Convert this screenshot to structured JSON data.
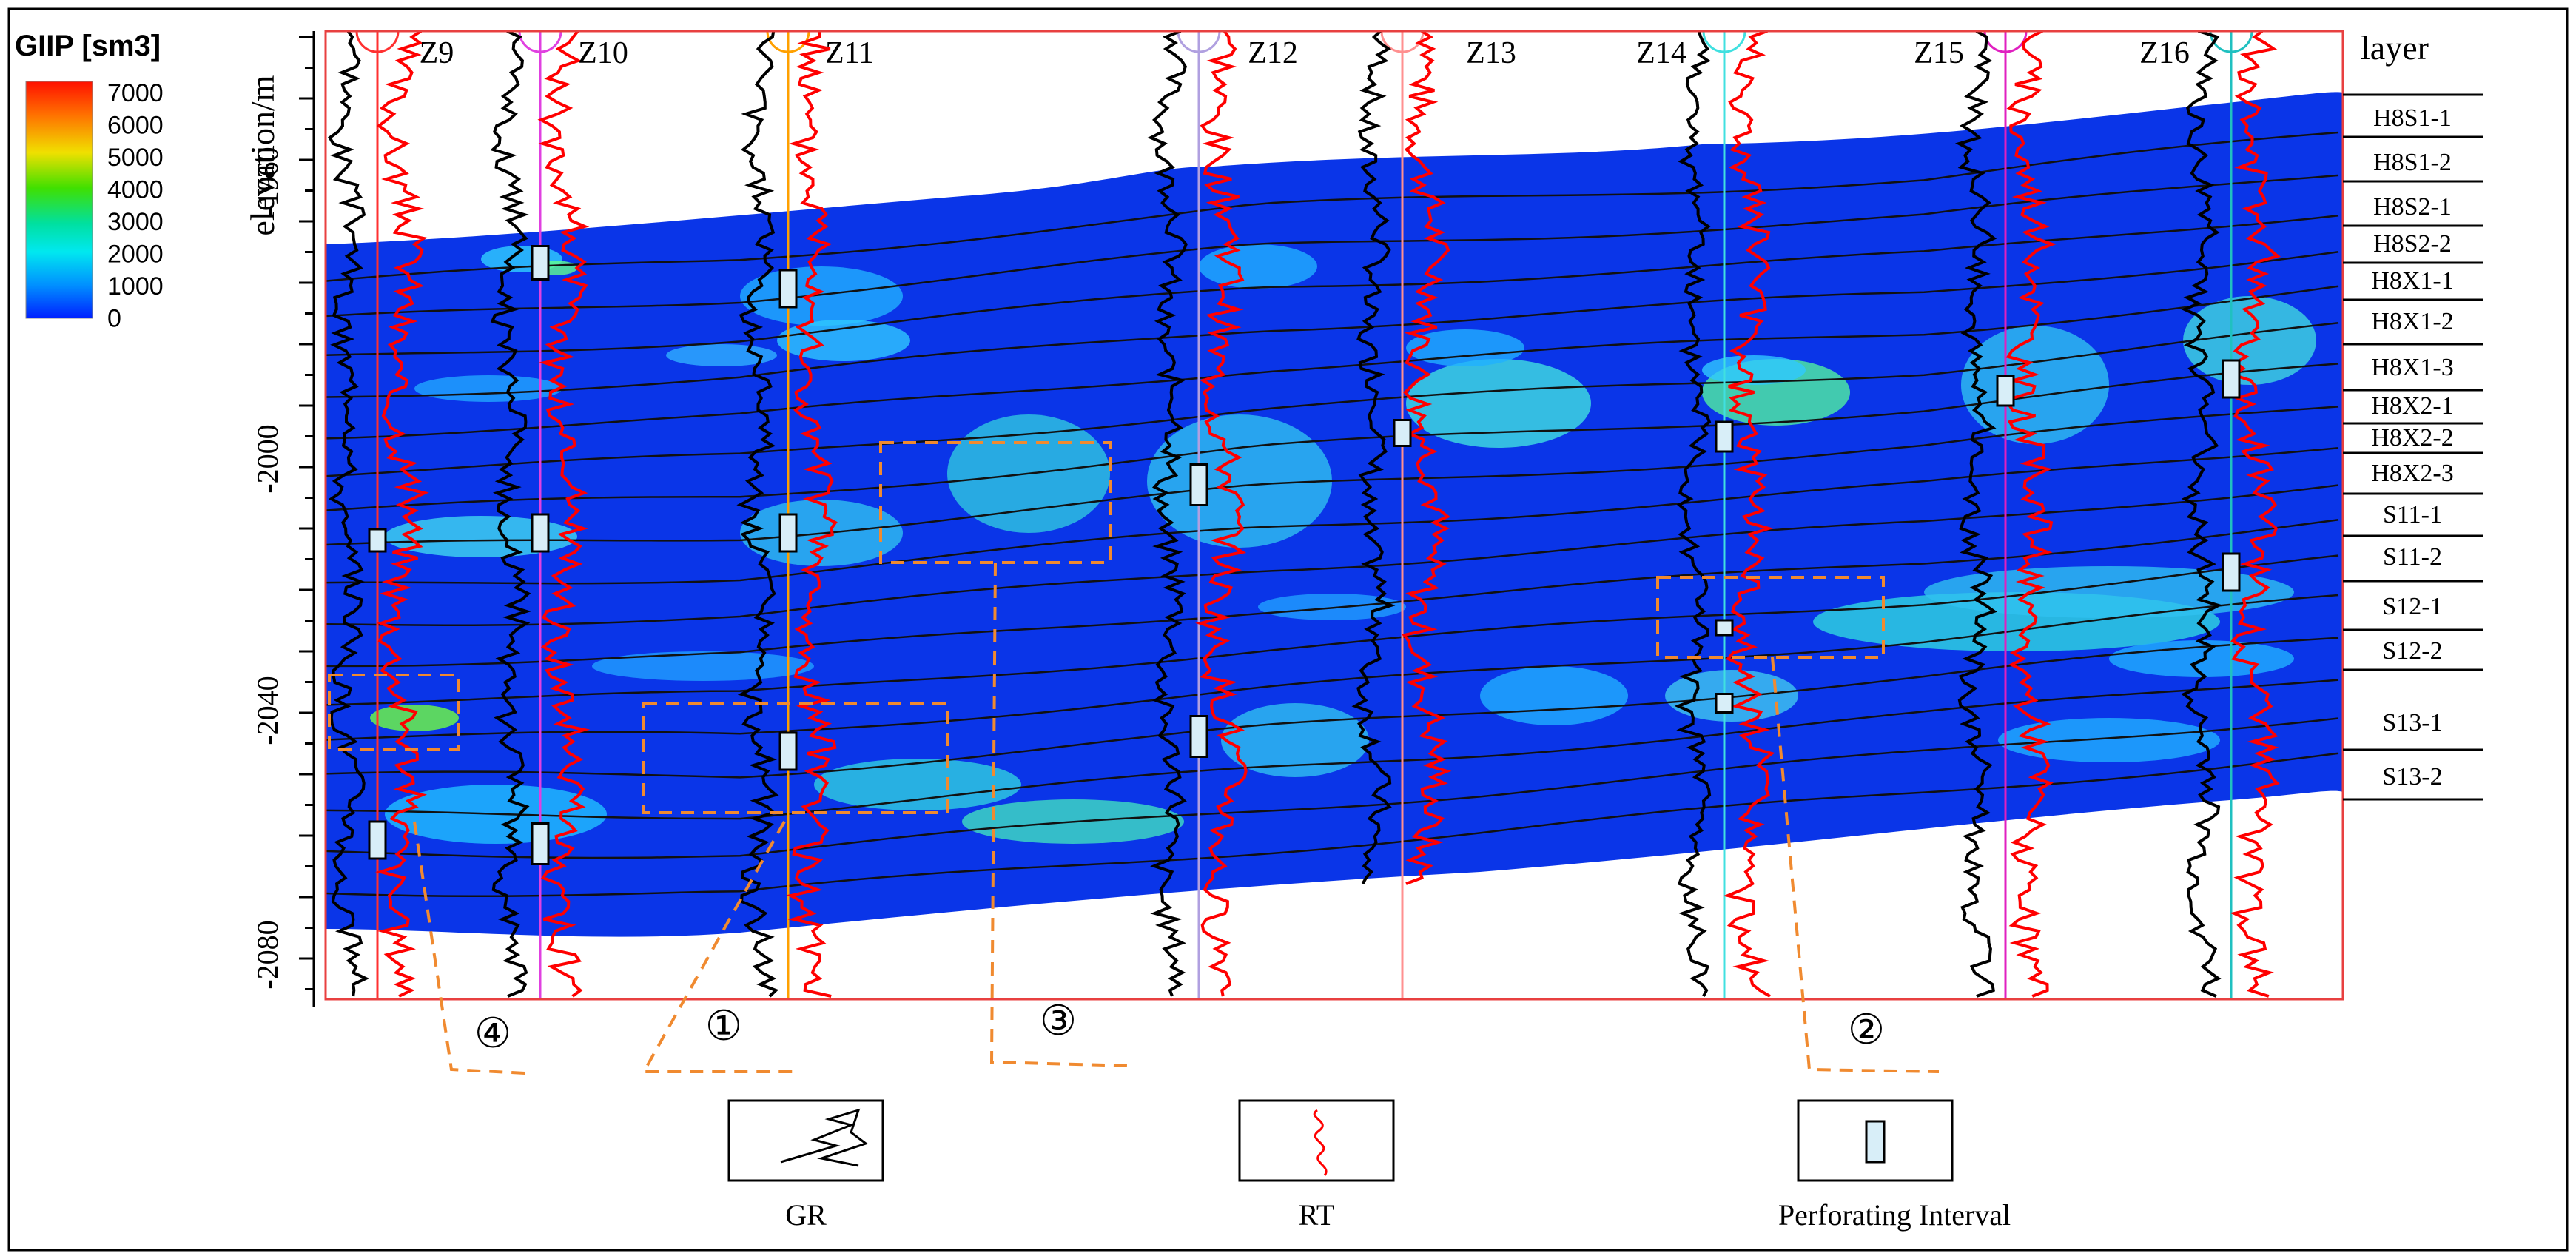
{
  "colorbar": {
    "title": "GIIP [sm3]",
    "ticks": [
      "7000",
      "6000",
      "5000",
      "4000",
      "3000",
      "2000",
      "1000",
      "0"
    ],
    "colors": [
      "#ff2000",
      "#ff8000",
      "#ffe000",
      "#60e000",
      "#00e060",
      "#00e8e0",
      "#00a0ff",
      "#0030ff"
    ]
  },
  "axis": {
    "label": "elevation/m",
    "ticks": [
      "-1960",
      "-2000",
      "-2040",
      "-2080"
    ]
  },
  "layer_header": "layer",
  "layers": [
    "H8S1-1",
    "H8S1-2",
    "H8S2-1",
    "H8S2-2",
    "H8X1-1",
    "H8X1-2",
    "H8X1-3",
    "H8X2-1",
    "H8X2-2",
    "H8X2-3",
    "S11-1",
    "S11-2",
    "S12-1",
    "S12-2",
    "S13-1",
    "S13-2"
  ],
  "wells": [
    {
      "name": "Z9",
      "color": "#ff3030"
    },
    {
      "name": "Z10",
      "color": "#e040e0"
    },
    {
      "name": "Z11",
      "color": "#ffa000"
    },
    {
      "name": "Z12",
      "color": "#b0a0e0"
    },
    {
      "name": "Z13",
      "color": "#ff9090"
    },
    {
      "name": "Z14",
      "color": "#40e0e0"
    },
    {
      "name": "Z15",
      "color": "#e020c0"
    },
    {
      "name": "Z16",
      "color": "#20c0c0"
    }
  ],
  "callouts": [
    "①",
    "②",
    "③",
    "④"
  ],
  "legend": {
    "gr": "GR",
    "rt": "RT",
    "perf": "Perforating Interval",
    "gr_color": "#000000",
    "rt_color": "#ff0000",
    "perf_color": "#d8eef8"
  },
  "colors": {
    "section_bg": "#0a35e8",
    "frame": "#e84040",
    "dashed_box": "#f08a30"
  }
}
